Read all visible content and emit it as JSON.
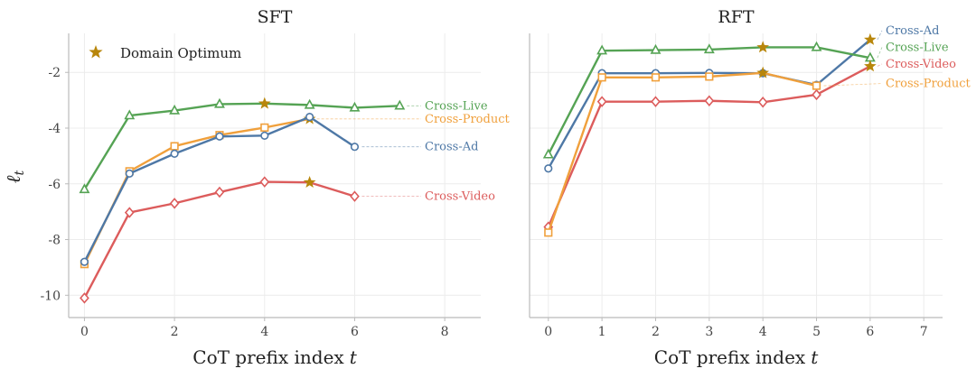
{
  "chart_data": {
    "type": "line",
    "ylabel": "ℓ",
    "ylabel_sub": "t",
    "legend": {
      "label": "Domain Optimum",
      "color": "#b8860b",
      "placement": "top-left"
    },
    "panels": [
      {
        "title": "SFT",
        "xlabel": "CoT prefix index",
        "xlabel_var": "t",
        "xlim": [
          -0.35,
          8.8
        ],
        "xticks": [
          0,
          2,
          4,
          6,
          8
        ],
        "ylim": [
          -10.8,
          -0.6
        ],
        "yticks": [
          -2,
          -4,
          -6,
          -8,
          -10
        ],
        "series": [
          {
            "name": "Cross-Live",
            "color": "#55a354",
            "marker": "triangle",
            "x": [
              0,
              1,
              2,
              3,
              4,
              5,
              6,
              7
            ],
            "y": [
              -6.2,
              -3.55,
              -3.37,
              -3.14,
              -3.12,
              -3.17,
              -3.27,
              -3.2
            ],
            "optimum_index": 4,
            "label_y": -3.2
          },
          {
            "name": "Cross-Product",
            "color": "#f0a03c",
            "marker": "square",
            "x": [
              0,
              1,
              2,
              3,
              4,
              5
            ],
            "y": [
              -8.88,
              -5.55,
              -4.65,
              -4.25,
              -3.98,
              -3.67
            ],
            "optimum_index": 5,
            "label_y": -3.67
          },
          {
            "name": "Cross-Ad",
            "color": "#4e78a6",
            "marker": "circle",
            "x": [
              0,
              1,
              2,
              3,
              4,
              5,
              6
            ],
            "y": [
              -8.8,
              -5.63,
              -4.92,
              -4.3,
              -4.27,
              -3.6,
              -4.67
            ],
            "optimum_index": null,
            "label_y": -4.67
          },
          {
            "name": "Cross-Video",
            "color": "#dc5c5c",
            "marker": "diamond",
            "x": [
              0,
              1,
              2,
              3,
              4,
              5,
              6
            ],
            "y": [
              -10.1,
              -7.03,
              -6.7,
              -6.3,
              -5.93,
              -5.95,
              -6.45
            ],
            "optimum_index": 5,
            "label_y": -6.45
          }
        ]
      },
      {
        "title": "RFT",
        "xlabel": "CoT prefix index",
        "xlabel_var": "t",
        "xlim": [
          -0.35,
          7.35
        ],
        "xticks": [
          0,
          1,
          2,
          3,
          4,
          5,
          6,
          7
        ],
        "ylim": [
          -10.8,
          -0.6
        ],
        "yticks": [
          -2,
          -4,
          -6,
          -8,
          -10
        ],
        "series": [
          {
            "name": "Cross-Ad",
            "color": "#4e78a6",
            "marker": "circle",
            "x": [
              0,
              1,
              2,
              3,
              4,
              5,
              6
            ],
            "y": [
              -5.45,
              -2.03,
              -2.03,
              -2.02,
              -2.03,
              -2.45,
              -0.83
            ],
            "optimum_index": 6,
            "label_y": -0.5
          },
          {
            "name": "Cross-Live",
            "color": "#55a354",
            "marker": "triangle",
            "x": [
              0,
              1,
              2,
              3,
              4,
              5,
              6
            ],
            "y": [
              -4.95,
              -1.22,
              -1.2,
              -1.18,
              -1.1,
              -1.1,
              -1.48
            ],
            "optimum_index": 4,
            "label_y": -1.1
          },
          {
            "name": "Cross-Video",
            "color": "#dc5c5c",
            "marker": "diamond",
            "x": [
              0,
              1,
              2,
              3,
              4,
              5,
              6
            ],
            "y": [
              -7.55,
              -3.05,
              -3.05,
              -3.02,
              -3.07,
              -2.8,
              -1.78
            ],
            "optimum_index": 6,
            "label_y": -1.7
          },
          {
            "name": "Cross-Product",
            "color": "#f0a03c",
            "marker": "square",
            "x": [
              0,
              1,
              2,
              3,
              4,
              5
            ],
            "y": [
              -7.75,
              -2.18,
              -2.18,
              -2.15,
              -2.02,
              -2.48
            ],
            "optimum_index": 4,
            "label_y": -2.4
          }
        ]
      }
    ]
  }
}
